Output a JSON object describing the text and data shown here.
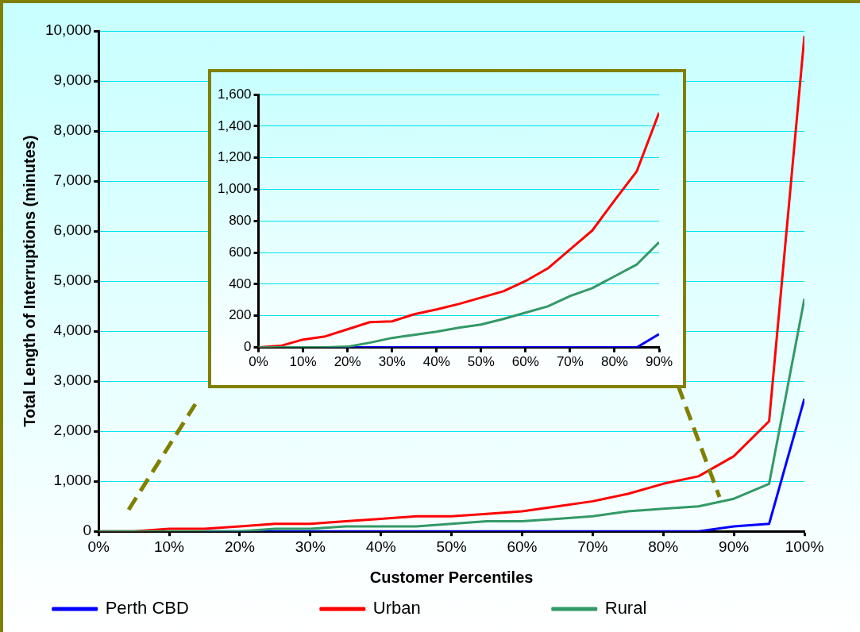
{
  "chart_data": [
    {
      "type": "line",
      "xlabel": "Customer Percentiles",
      "ylabel": "Total Length of Interruptions (minutes)",
      "x": [
        0,
        5,
        10,
        15,
        20,
        25,
        30,
        35,
        40,
        45,
        50,
        55,
        60,
        65,
        70,
        75,
        80,
        85,
        90,
        95,
        100
      ],
      "series": [
        {
          "name": "Perth CBD",
          "color": "#0000ff",
          "values": [
            null,
            null,
            null,
            0,
            0,
            0,
            0,
            0,
            0,
            0,
            0,
            0,
            0,
            0,
            0,
            0,
            0,
            0,
            100,
            150,
            2650
          ]
        },
        {
          "name": "Urban",
          "color": "#ff0000",
          "values": [
            0,
            0,
            50,
            50,
            100,
            150,
            150,
            200,
            250,
            300,
            300,
            350,
            400,
            500,
            600,
            750,
            950,
            1100,
            1500,
            2200,
            9900
          ]
        },
        {
          "name": "Rural",
          "color": "#339966",
          "values": [
            0,
            0,
            0,
            0,
            0,
            50,
            50,
            100,
            100,
            100,
            150,
            200,
            200,
            250,
            300,
            400,
            450,
            500,
            650,
            950,
            4650
          ]
        }
      ],
      "xlim": [
        0,
        100
      ],
      "xticks": [
        {
          "value": 0,
          "label": "0%"
        },
        {
          "value": 10,
          "label": "10%"
        },
        {
          "value": 20,
          "label": "20%"
        },
        {
          "value": 30,
          "label": "30%"
        },
        {
          "value": 40,
          "label": "40%"
        },
        {
          "value": 50,
          "label": "50%"
        },
        {
          "value": 60,
          "label": "60%"
        },
        {
          "value": 70,
          "label": "70%"
        },
        {
          "value": 80,
          "label": "80%"
        },
        {
          "value": 90,
          "label": "90%"
        },
        {
          "value": 100,
          "label": "100%"
        }
      ],
      "ylim": [
        0,
        10000
      ],
      "yticks": [
        0,
        {
          "value": 1000,
          "label": "1,000"
        },
        {
          "value": 2000,
          "label": "2,000"
        },
        {
          "value": 3000,
          "label": "3,000"
        },
        {
          "value": 4000,
          "label": "4,000"
        },
        {
          "value": 5000,
          "label": "5,000"
        },
        {
          "value": 6000,
          "label": "6,000"
        },
        {
          "value": 7000,
          "label": "7,000"
        },
        {
          "value": 8000,
          "label": "8,000"
        },
        {
          "value": 9000,
          "label": "9,000"
        },
        {
          "value": 10000,
          "label": "10,000"
        }
      ],
      "grid": "y",
      "legend": "bottom",
      "marker": "none",
      "line_style": "solid"
    },
    {
      "type": "line",
      "x": [
        0,
        5,
        10,
        15,
        20,
        25,
        30,
        35,
        40,
        45,
        50,
        55,
        60,
        65,
        70,
        75,
        80,
        85,
        90
      ],
      "series": [
        {
          "color": "#0000ff",
          "values": [
            null,
            null,
            null,
            0,
            0,
            0,
            0,
            0,
            0,
            0,
            0,
            0,
            0,
            0,
            0,
            0,
            0,
            0,
            85
          ]
        },
        {
          "color": "#ff0000",
          "values": [
            0,
            10,
            50,
            70,
            115,
            160,
            165,
            210,
            240,
            275,
            315,
            355,
            420,
            500,
            620,
            740,
            930,
            1115,
            1485
          ]
        },
        {
          "color": "#339966",
          "values": [
            0,
            0,
            0,
            0,
            5,
            30,
            60,
            80,
            100,
            125,
            145,
            180,
            220,
            260,
            325,
            375,
            450,
            525,
            665
          ]
        }
      ],
      "xlim": [
        0,
        90
      ],
      "xticks": [
        {
          "value": 0,
          "label": "0%"
        },
        {
          "value": 10,
          "label": "10%"
        },
        {
          "value": 20,
          "label": "20%"
        },
        {
          "value": 30,
          "label": "30%"
        },
        {
          "value": 40,
          "label": "40%"
        },
        {
          "value": 50,
          "label": "50%"
        },
        {
          "value": 60,
          "label": "60%"
        },
        {
          "value": 70,
          "label": "70%"
        },
        {
          "value": 80,
          "label": "80%"
        },
        {
          "value": 90,
          "label": "90%"
        }
      ],
      "ylim": [
        0,
        1600
      ],
      "yticks": [
        0,
        200,
        400,
        600,
        800,
        {
          "value": 1000,
          "label": "1,000"
        },
        {
          "value": 1200,
          "label": "1,200"
        },
        {
          "value": 1400,
          "label": "1,400"
        },
        {
          "value": 1600,
          "label": "1,600"
        }
      ],
      "grid": "y",
      "legend": false,
      "marker": "none",
      "line_style": "solid"
    }
  ]
}
